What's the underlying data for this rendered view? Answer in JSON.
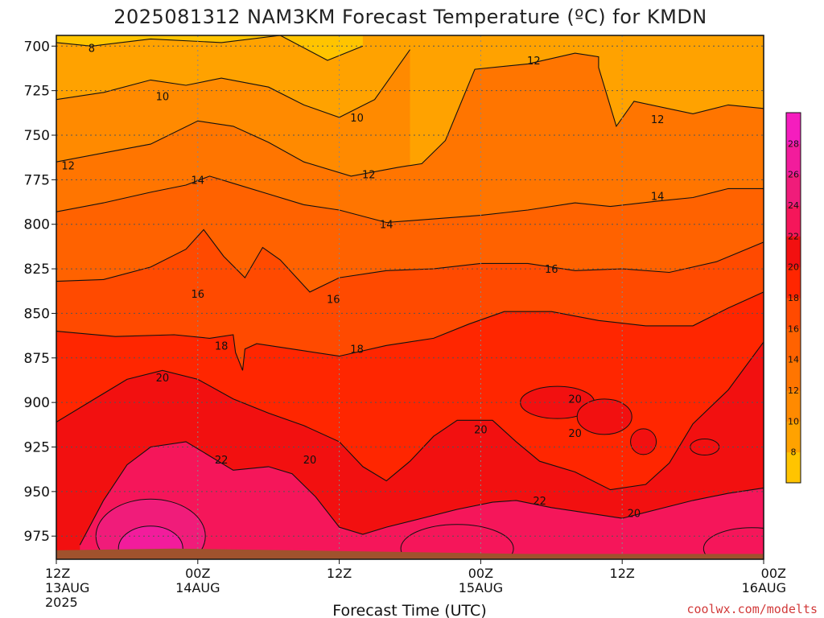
{
  "title": "2025081312 NAM3KM Forecast Temperature (ºC) for KMDN",
  "credit": "coolwx.com/modelts",
  "colors": {
    "ground": "#A0522D",
    "contour_line": "#111111",
    "grid": "#555555"
  },
  "chart_data": {
    "type": "heatmap",
    "title": "2025081312 NAM3KM Forecast Temperature (ºC) for KMDN",
    "xlabel": "Forecast Time (UTC)",
    "ylabel": "",
    "x_ticks": [
      {
        "hour": 0,
        "lines": [
          "12Z",
          "13AUG",
          "2025"
        ]
      },
      {
        "hour": 12,
        "lines": [
          "00Z",
          "14AUG"
        ]
      },
      {
        "hour": 24,
        "lines": [
          "12Z"
        ]
      },
      {
        "hour": 36,
        "lines": [
          "00Z",
          "15AUG"
        ]
      },
      {
        "hour": 48,
        "lines": [
          "12Z"
        ]
      },
      {
        "hour": 60,
        "lines": [
          "00Z",
          "16AUG"
        ]
      }
    ],
    "xlim": [
      0,
      60
    ],
    "y_ticks": [
      "700",
      "725",
      "750",
      "775",
      "800",
      "825",
      "850",
      "875",
      "900",
      "925",
      "950",
      "975"
    ],
    "ylim": [
      988,
      694
    ],
    "colorbar": {
      "labels": [
        "8",
        "10",
        "12",
        "14",
        "16",
        "18",
        "20",
        "22",
        "24",
        "26",
        "28"
      ],
      "levels": [
        6,
        8,
        10,
        12,
        14,
        16,
        18,
        20,
        22,
        24,
        26,
        28,
        30
      ],
      "colors": [
        "#FFC400",
        "#FFA200",
        "#FF8A00",
        "#FF7500",
        "#FF6200",
        "#FF4A00",
        "#FF2600",
        "#F21010",
        "#F5165A",
        "#F01C7A",
        "#F21C9C",
        "#F51DBE"
      ]
    },
    "contour_lines": [
      {
        "value": 8,
        "points": [
          [
            0,
            698
          ],
          [
            3,
            700
          ],
          [
            8,
            696
          ],
          [
            14,
            698
          ],
          [
            19,
            694
          ],
          [
            23,
            708
          ],
          [
            26,
            700
          ]
        ]
      },
      {
        "value": 10,
        "points": [
          [
            0,
            730
          ],
          [
            4,
            726
          ],
          [
            8,
            719
          ],
          [
            11,
            722
          ],
          [
            14,
            718
          ],
          [
            18,
            723
          ],
          [
            21,
            733
          ],
          [
            24,
            740
          ],
          [
            27,
            730
          ],
          [
            30,
            702
          ]
        ]
      },
      {
        "value": 12,
        "points": [
          [
            0,
            765
          ],
          [
            4,
            760
          ],
          [
            8,
            755
          ],
          [
            12,
            742
          ],
          [
            15,
            745
          ],
          [
            18,
            754
          ],
          [
            21,
            765
          ],
          [
            25,
            773
          ],
          [
            29,
            768
          ],
          [
            31,
            766
          ],
          [
            33,
            753
          ],
          [
            35.5,
            713
          ],
          [
            40,
            710
          ],
          [
            44,
            704
          ],
          [
            46,
            706
          ],
          [
            46,
            712
          ],
          [
            47.5,
            745
          ],
          [
            49,
            731
          ],
          [
            54,
            738
          ],
          [
            57,
            733
          ],
          [
            60,
            735
          ]
        ]
      },
      {
        "value": 14,
        "points": [
          [
            0,
            793
          ],
          [
            4,
            788
          ],
          [
            8,
            782
          ],
          [
            11,
            778
          ],
          [
            13,
            773
          ],
          [
            15,
            777
          ],
          [
            18,
            783
          ],
          [
            21,
            789
          ],
          [
            24,
            792
          ],
          [
            28,
            799
          ],
          [
            32,
            797
          ],
          [
            36,
            795
          ],
          [
            40,
            792
          ],
          [
            44,
            788
          ],
          [
            47,
            790
          ],
          [
            51,
            787
          ],
          [
            54,
            785
          ],
          [
            57,
            780
          ],
          [
            60,
            780
          ]
        ]
      },
      {
        "value": 16,
        "points": [
          [
            0,
            832
          ],
          [
            4,
            831
          ],
          [
            8,
            824
          ],
          [
            11,
            814
          ],
          [
            12.5,
            803
          ],
          [
            14.2,
            818
          ],
          [
            16,
            830
          ],
          [
            17.5,
            813
          ],
          [
            19,
            820
          ],
          [
            21.5,
            838
          ],
          [
            24,
            830
          ],
          [
            28,
            826
          ],
          [
            32,
            825
          ],
          [
            36,
            822
          ],
          [
            40,
            822
          ],
          [
            44,
            826
          ],
          [
            48,
            825
          ],
          [
            52,
            827
          ],
          [
            56,
            821
          ],
          [
            60,
            810
          ]
        ]
      },
      {
        "value": 18,
        "points": [
          [
            0,
            860
          ],
          [
            5,
            863
          ],
          [
            10,
            862
          ],
          [
            13,
            864
          ],
          [
            15,
            862
          ],
          [
            15.2,
            872
          ],
          [
            15.8,
            882
          ],
          [
            16,
            870
          ],
          [
            17,
            867
          ],
          [
            20,
            870
          ],
          [
            24,
            874
          ],
          [
            28,
            868
          ],
          [
            32,
            864
          ],
          [
            35,
            856
          ],
          [
            38,
            849
          ],
          [
            42,
            849
          ],
          [
            46,
            854
          ],
          [
            50,
            857
          ],
          [
            54,
            857
          ],
          [
            57,
            847
          ],
          [
            60,
            838
          ]
        ]
      },
      {
        "value": 20,
        "points": [
          [
            0,
            911
          ],
          [
            3,
            899
          ],
          [
            6,
            887
          ],
          [
            9,
            882
          ],
          [
            12,
            887
          ],
          [
            15,
            898
          ],
          [
            18,
            906
          ],
          [
            21,
            913
          ],
          [
            24,
            922
          ],
          [
            26,
            936
          ],
          [
            28,
            944
          ],
          [
            30,
            933
          ],
          [
            32,
            919
          ],
          [
            34,
            910
          ],
          [
            37,
            910
          ],
          [
            39,
            922
          ],
          [
            41,
            933
          ],
          [
            44,
            939
          ],
          [
            47,
            949
          ],
          [
            50,
            946
          ],
          [
            52,
            934
          ],
          [
            54,
            912
          ],
          [
            57,
            893
          ],
          [
            59,
            875
          ],
          [
            60,
            866
          ]
        ]
      },
      {
        "value": 22,
        "points": [
          [
            2,
            980
          ],
          [
            4,
            955
          ],
          [
            6,
            935
          ],
          [
            8,
            925
          ],
          [
            11,
            922
          ],
          [
            13,
            930
          ],
          [
            15,
            938
          ],
          [
            18,
            936
          ],
          [
            20,
            940
          ],
          [
            22,
            953
          ],
          [
            24,
            970
          ],
          [
            26,
            974
          ],
          [
            28,
            970
          ],
          [
            31,
            965
          ],
          [
            34,
            960
          ],
          [
            37,
            956
          ],
          [
            39,
            955
          ],
          [
            42,
            959
          ],
          [
            45,
            962
          ],
          [
            48,
            965
          ],
          [
            51,
            960
          ],
          [
            54,
            955
          ],
          [
            57,
            951
          ],
          [
            60,
            948
          ]
        ]
      }
    ],
    "contour_labels": [
      {
        "text": "8",
        "x": 3,
        "y": 701
      },
      {
        "text": "10",
        "x": 9,
        "y": 728
      },
      {
        "text": "10",
        "x": 25.5,
        "y": 740
      },
      {
        "text": "12",
        "x": 1,
        "y": 767
      },
      {
        "text": "12",
        "x": 26.5,
        "y": 772
      },
      {
        "text": "12",
        "x": 40.5,
        "y": 708
      },
      {
        "text": "12",
        "x": 51,
        "y": 741
      },
      {
        "text": "14",
        "x": 12,
        "y": 775
      },
      {
        "text": "14",
        "x": 28,
        "y": 800
      },
      {
        "text": "14",
        "x": 51,
        "y": 784
      },
      {
        "text": "16",
        "x": 12,
        "y": 839
      },
      {
        "text": "16",
        "x": 23.5,
        "y": 842
      },
      {
        "text": "16",
        "x": 42,
        "y": 825
      },
      {
        "text": "18",
        "x": 14,
        "y": 868
      },
      {
        "text": "18",
        "x": 25.5,
        "y": 870
      },
      {
        "text": "20",
        "x": 9,
        "y": 886
      },
      {
        "text": "20",
        "x": 21.5,
        "y": 932
      },
      {
        "text": "20",
        "x": 36,
        "y": 915
      },
      {
        "text": "20",
        "x": 44,
        "y": 898
      },
      {
        "text": "20",
        "x": 44,
        "y": 917
      },
      {
        "text": "20",
        "x": 49,
        "y": 962
      },
      {
        "text": "22",
        "x": 14,
        "y": 932
      },
      {
        "text": "22",
        "x": 41,
        "y": 955
      }
    ]
  }
}
